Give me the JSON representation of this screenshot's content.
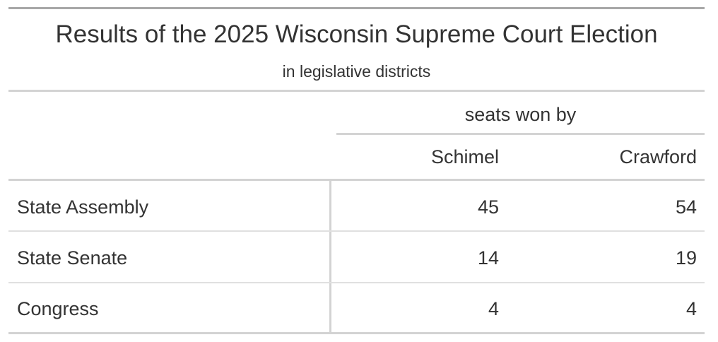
{
  "header": {
    "title": "Results of the 2025 Wisconsin Supreme Court Election",
    "subtitle": "in legislative districts"
  },
  "table": {
    "spanner": "seats won by",
    "columns": [
      "Schimel",
      "Crawford"
    ],
    "rows": [
      {
        "label": "State Assembly",
        "values": [
          45,
          54
        ]
      },
      {
        "label": "State Senate",
        "values": [
          14,
          19
        ]
      },
      {
        "label": "Congress",
        "values": [
          4,
          4
        ]
      }
    ]
  }
}
